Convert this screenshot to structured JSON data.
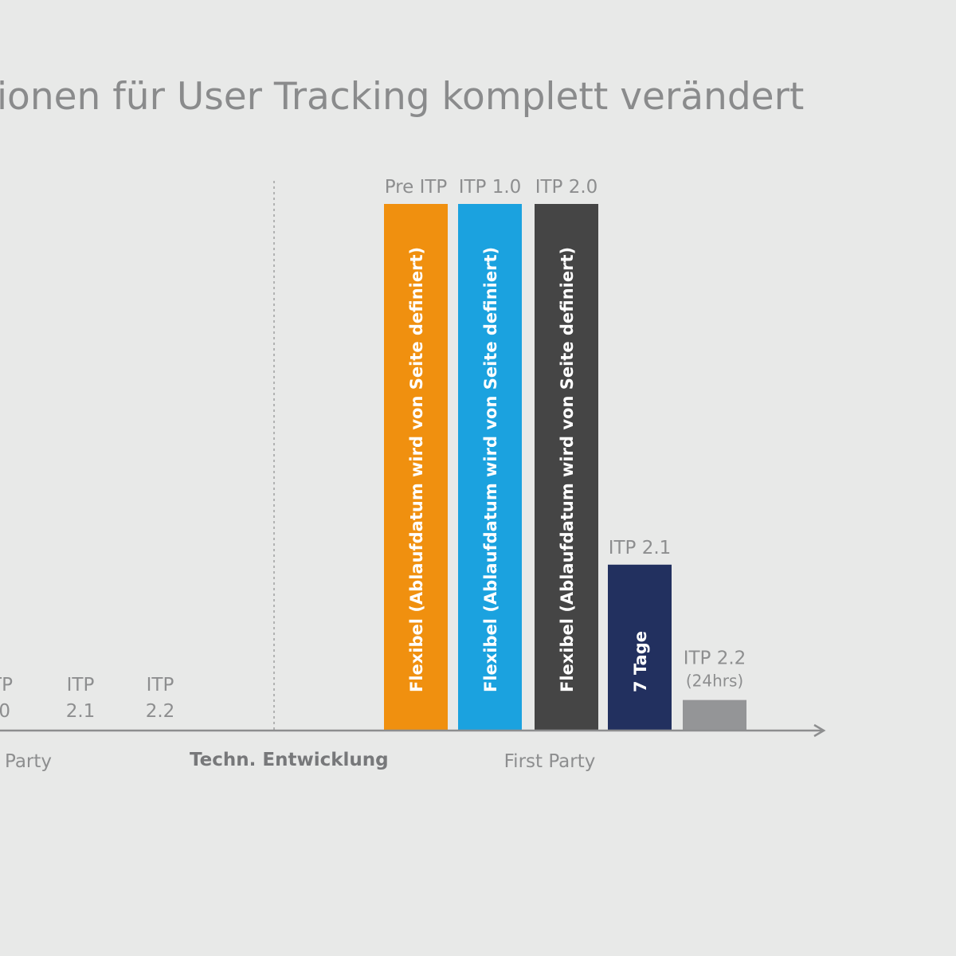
{
  "title": "ionen für User Tracking komplett verändert",
  "colors": {
    "background": "#e8e9e8",
    "text": "#8d8e8f",
    "axis": "#8d8e8f",
    "pre_itp": "#f0900f",
    "itp_1_0": "#1ba2df",
    "itp_2_0": "#454545",
    "itp_2_1": "#22305f",
    "itp_2_2": "#949597"
  },
  "chart_data": {
    "type": "bar",
    "title": "ionen für User Tracking komplett verändert",
    "groups": [
      {
        "name": "Party",
        "labels": [
          {
            "line1": "TP",
            "line2": ".0"
          },
          {
            "line1": "ITP",
            "line2": "2.1"
          },
          {
            "line1": "ITP",
            "line2": "2.2"
          }
        ]
      },
      {
        "name": "Techn. Entwicklung"
      },
      {
        "name": "First Party",
        "bars": [
          {
            "label": "Pre ITP",
            "note": "",
            "inner_text": "Flexibel (Ablaufdatum wird von Seite definiert)",
            "relative_height": 1.0,
            "color": "#f0900f"
          },
          {
            "label": "ITP 1.0",
            "note": "",
            "inner_text": "Flexibel (Ablaufdatum wird von Seite definiert)",
            "relative_height": 1.0,
            "color": "#1ba2df"
          },
          {
            "label": "ITP 2.0",
            "note": "",
            "inner_text": "Flexibel (Ablaufdatum wird von Seite definiert)",
            "relative_height": 1.0,
            "color": "#454545"
          },
          {
            "label": "ITP 2.1",
            "note": "",
            "inner_text": "7 Tage",
            "relative_height": 0.315,
            "color": "#22305f"
          },
          {
            "label": "ITP 2.2",
            "note": "(24hrs)",
            "inner_text": "",
            "relative_height": 0.058,
            "color": "#949597"
          }
        ]
      }
    ]
  }
}
